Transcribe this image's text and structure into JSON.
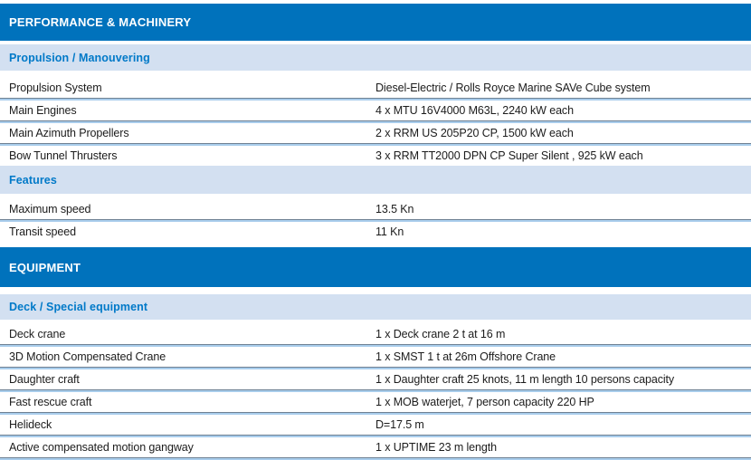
{
  "sections": [
    {
      "title": "PERFORMANCE & MACHINERY",
      "groups": [
        {
          "heading": "Propulsion / Manouvering",
          "rows": [
            {
              "label": "Propulsion System",
              "value": "Diesel-Electric / Rolls Royce Marine SAVe Cube system"
            },
            {
              "label": "Main Engines",
              "value": "4 x MTU 16V4000 M63L, 2240 kW each"
            },
            {
              "label": "Main Azimuth Propellers",
              "value": "2 x RRM US 205P20 CP, 1500 kW each"
            },
            {
              "label": "Bow Tunnel Thrusters",
              "value": "3 x RRM TT2000 DPN CP Super Silent , 925 kW each"
            }
          ]
        },
        {
          "heading": "Features",
          "rows": [
            {
              "label": "Maximum speed",
              "value": "13.5 Kn"
            },
            {
              "label": "Transit speed",
              "value": "11 Kn"
            }
          ]
        }
      ]
    },
    {
      "title": "EQUIPMENT",
      "groups": [
        {
          "heading": "Deck / Special equipment",
          "rows": [
            {
              "label": "Deck crane",
              "value": "1 x Deck crane 2 t at 16 m"
            },
            {
              "label": "3D Motion Compensated Crane",
              "value": "1 x SMST 1 t at 26m Offshore Crane"
            },
            {
              "label": "Daughter craft",
              "value": "1 x Daughter craft  25 knots, 11 m length 10 persons capacity"
            },
            {
              "label": "Fast rescue craft",
              "value": "1 x MOB waterjet, 7 person capacity  220 HP"
            },
            {
              "label": "Helideck",
              "value": "D=17.5 m"
            },
            {
              "label": "Active compensated motion gangway",
              "value": "1 x UPTIME 23 m length"
            }
          ]
        }
      ]
    }
  ],
  "colors": {
    "header_bg": "#0072bc",
    "header_text": "#ffffff",
    "subheader_bg": "#d3e0f1",
    "subheader_text": "#0079c8",
    "row_text": "#1c1c1c",
    "divider_dark": "#6f8193",
    "divider_light": "#a9cdec"
  }
}
